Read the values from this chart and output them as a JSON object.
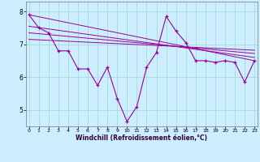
{
  "xlabel": "Windchill (Refroidissement éolien,°C)",
  "background_color": "#cceeff",
  "grid_color": "#aadddd",
  "line_color": "#990099",
  "x_ticks": [
    0,
    1,
    2,
    3,
    4,
    5,
    6,
    7,
    8,
    9,
    10,
    11,
    12,
    13,
    14,
    15,
    16,
    17,
    18,
    19,
    20,
    21,
    22,
    23
  ],
  "y_ticks": [
    5,
    6,
    7,
    8
  ],
  "ylim": [
    4.5,
    8.3
  ],
  "xlim": [
    -0.3,
    23.3
  ],
  "series1_x": [
    0,
    1,
    2,
    3,
    4,
    5,
    6,
    7,
    8,
    9,
    10,
    11,
    12,
    13,
    14,
    15,
    16,
    17,
    18,
    19,
    20,
    21,
    22,
    23
  ],
  "series1_y": [
    7.9,
    7.5,
    7.35,
    6.8,
    6.8,
    6.25,
    6.25,
    5.75,
    6.3,
    5.35,
    4.65,
    5.1,
    6.3,
    6.75,
    7.85,
    7.4,
    7.05,
    6.5,
    6.5,
    6.45,
    6.5,
    6.45,
    5.85,
    6.5
  ],
  "series2_x": [
    0,
    23
  ],
  "series2_y": [
    7.9,
    6.5
  ],
  "series3_x": [
    0,
    23
  ],
  "series3_y": [
    7.55,
    6.6
  ],
  "series4_x": [
    0,
    23
  ],
  "series4_y": [
    7.35,
    6.72
  ],
  "series5_x": [
    0,
    23
  ],
  "series5_y": [
    7.15,
    6.82
  ]
}
